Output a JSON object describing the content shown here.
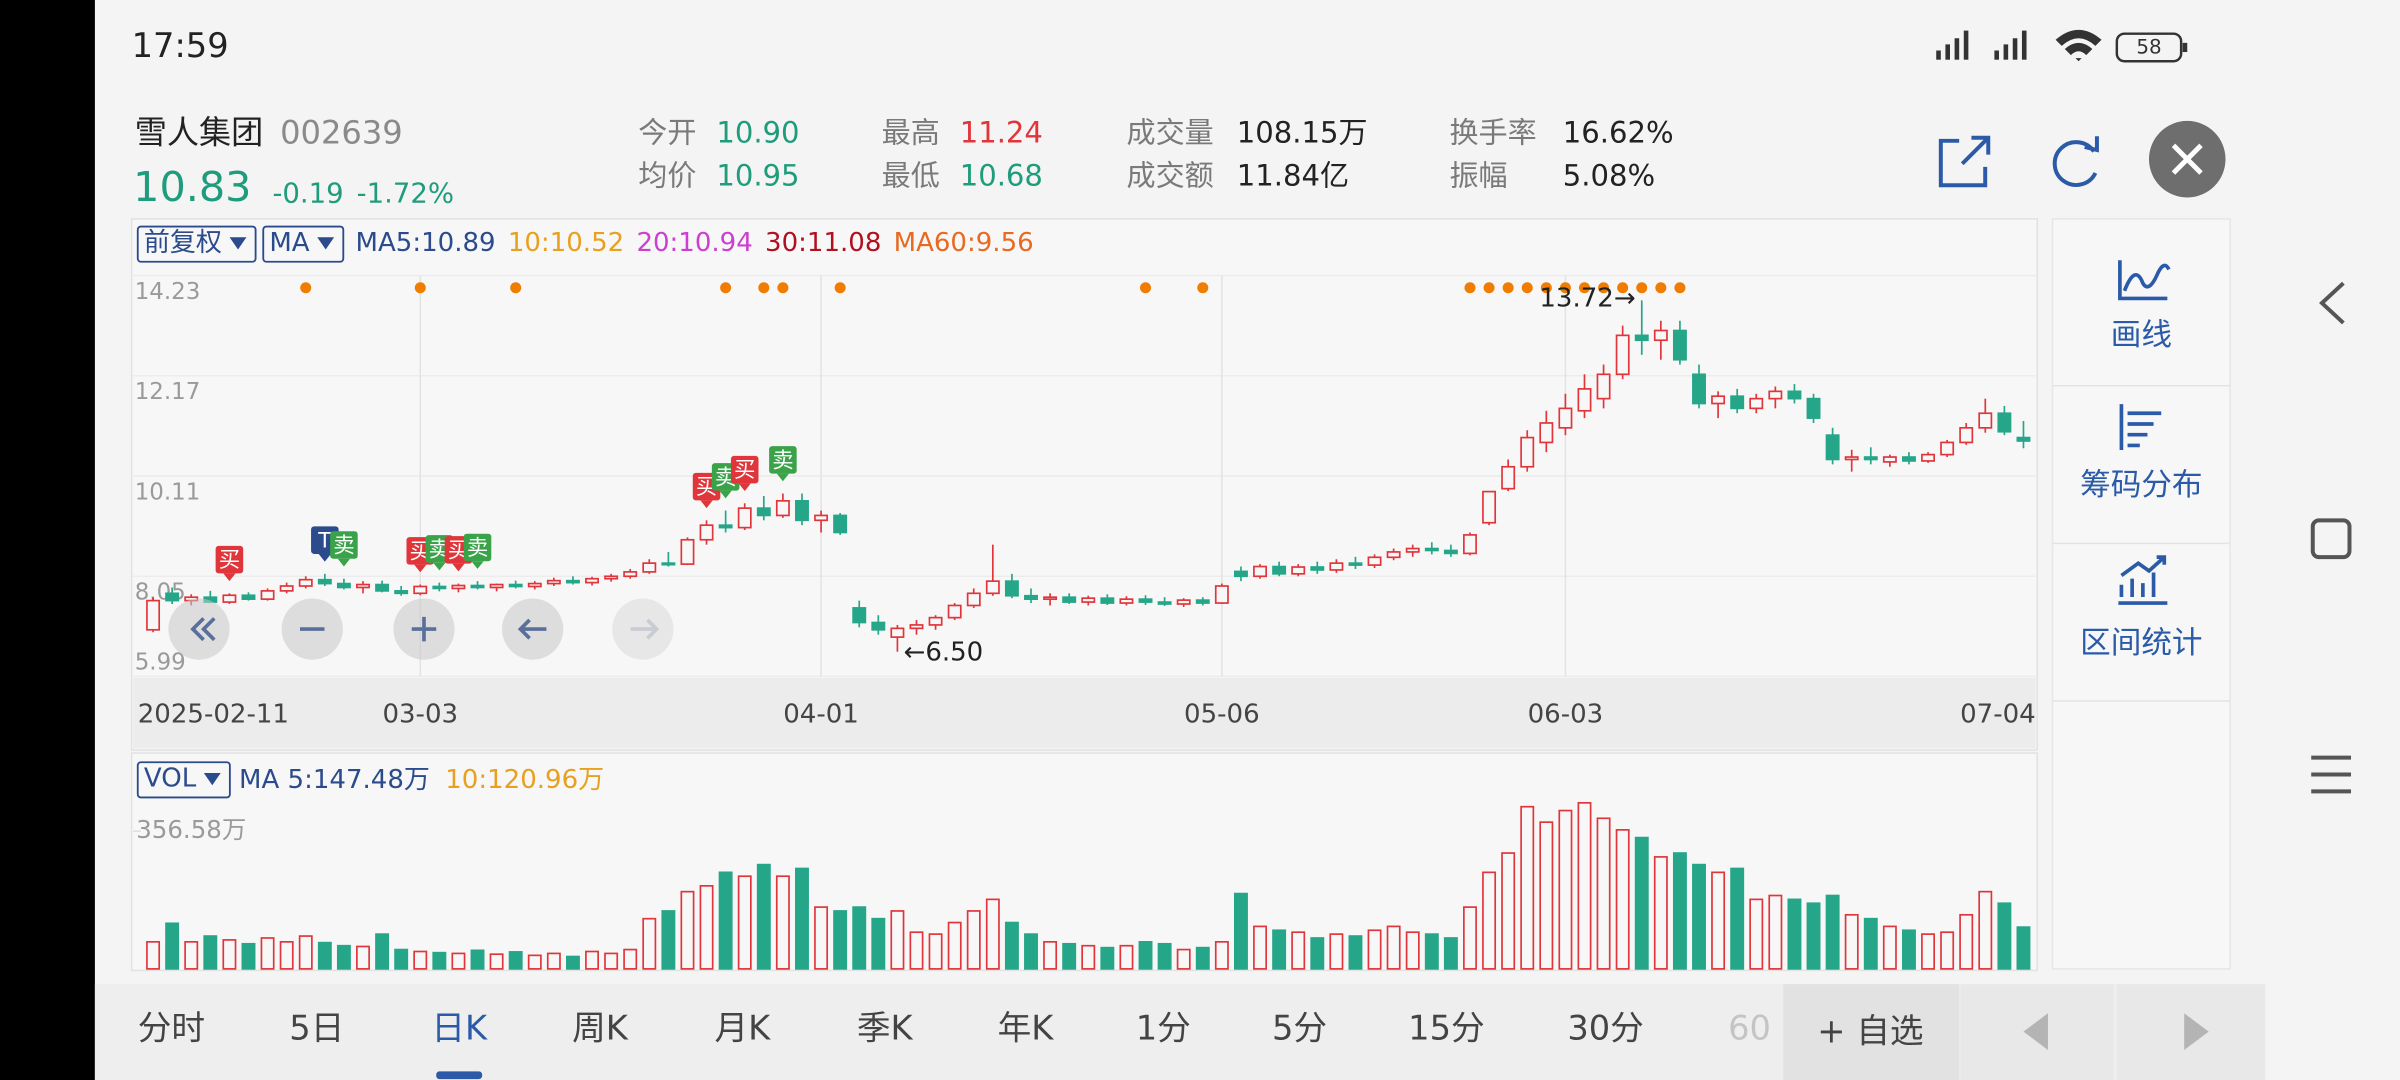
{
  "status_bar": {
    "time": "17:59",
    "battery": "58"
  },
  "header": {
    "name": "雪人集团",
    "code": "002639",
    "price": "10.83",
    "change": "-0.19",
    "change_pct": "-1.72%",
    "stats": [
      {
        "label": "今开",
        "value": "10.90",
        "color": "#1f9c7c"
      },
      {
        "label": "最高",
        "value": "11.24",
        "color": "#e0353a"
      },
      {
        "label": "成交量",
        "value": "108.15万",
        "color": "#222222"
      },
      {
        "label": "换手率",
        "value": "16.62%",
        "color": "#222222"
      },
      {
        "label": "均价",
        "value": "10.95",
        "color": "#1f9c7c"
      },
      {
        "label": "最低",
        "value": "10.68",
        "color": "#1f9c7c"
      },
      {
        "label": "成交额",
        "value": "11.84亿",
        "color": "#222222"
      },
      {
        "label": "振幅",
        "value": "5.08%",
        "color": "#222222"
      }
    ]
  },
  "chart_data": [
    {
      "type": "candlestick",
      "controls": [
        "前复权",
        "MA"
      ],
      "ma_legend": [
        {
          "label": "MA5:10.89",
          "color": "#2b4b8c"
        },
        {
          "label": "10:10.52",
          "color": "#e8a020"
        },
        {
          "label": "20:10.94",
          "color": "#cc3fd0"
        },
        {
          "label": "30:11.08",
          "color": "#b01020"
        },
        {
          "label": "MA60:9.56",
          "color": "#e86a20"
        }
      ],
      "categories": [
        "2025-02-11",
        null,
        null,
        null,
        null,
        null,
        null,
        null,
        null,
        null,
        null,
        null,
        null,
        null,
        "03-03",
        null,
        null,
        null,
        null,
        null,
        null,
        null,
        null,
        null,
        null,
        null,
        null,
        null,
        null,
        null,
        null,
        null,
        null,
        null,
        null,
        "04-01",
        null,
        null,
        null,
        null,
        null,
        null,
        null,
        null,
        null,
        null,
        null,
        null,
        null,
        null,
        null,
        null,
        null,
        null,
        null,
        null,
        "05-06",
        null,
        null,
        null,
        null,
        null,
        null,
        null,
        null,
        null,
        null,
        null,
        null,
        null,
        null,
        null,
        null,
        null,
        "06-03",
        null,
        null,
        null,
        null,
        null,
        null,
        null,
        null,
        null,
        null,
        null,
        null,
        null,
        null,
        null,
        null,
        null,
        null,
        null,
        null,
        null,
        null,
        null,
        "07-04"
      ],
      "open": [
        6.95,
        7.7,
        7.55,
        7.62,
        7.52,
        7.66,
        7.58,
        7.75,
        7.85,
        7.98,
        7.9,
        7.82,
        7.88,
        7.75,
        7.7,
        7.84,
        7.8,
        7.86,
        7.82,
        7.88,
        7.84,
        7.9,
        7.96,
        7.92,
        8.0,
        8.05,
        8.14,
        8.32,
        8.3,
        8.8,
        9.1,
        9.05,
        9.45,
        9.3,
        9.6,
        9.2,
        9.3,
        7.4,
        7.1,
        6.8,
        6.98,
        7.05,
        7.2,
        7.45,
        7.7,
        7.95,
        7.65,
        7.58,
        7.62,
        7.52,
        7.6,
        7.5,
        7.58,
        7.52,
        7.48,
        7.56,
        7.5,
        8.15,
        8.05,
        8.25,
        8.1,
        8.24,
        8.18,
        8.32,
        8.28,
        8.44,
        8.55,
        8.62,
        8.58,
        8.52,
        9.15,
        9.85,
        10.3,
        10.8,
        11.1,
        11.45,
        11.7,
        12.2,
        13.0,
        12.9,
        13.1,
        12.2,
        11.6,
        11.75,
        11.5,
        11.7,
        11.85,
        11.7,
        10.95,
        10.45,
        10.5,
        10.4,
        10.5,
        10.42,
        10.55,
        10.8,
        11.1,
        11.4,
        10.9
      ],
      "high": [
        7.62,
        7.82,
        7.68,
        7.75,
        7.7,
        7.72,
        7.8,
        7.92,
        8.05,
        8.1,
        8.0,
        7.95,
        7.96,
        7.85,
        7.88,
        7.92,
        7.9,
        7.95,
        7.9,
        7.96,
        7.95,
        8.02,
        8.05,
        8.04,
        8.1,
        8.2,
        8.4,
        8.55,
        8.85,
        9.2,
        9.4,
        9.55,
        9.7,
        9.75,
        9.75,
        9.4,
        9.35,
        7.55,
        7.25,
        7.05,
        7.15,
        7.25,
        7.5,
        7.8,
        8.7,
        8.1,
        7.8,
        7.7,
        7.7,
        7.65,
        7.68,
        7.64,
        7.66,
        7.62,
        7.6,
        7.62,
        7.9,
        8.25,
        8.3,
        8.35,
        8.3,
        8.35,
        8.4,
        8.45,
        8.5,
        8.62,
        8.7,
        8.75,
        8.7,
        8.95,
        9.8,
        10.45,
        11.05,
        11.45,
        11.8,
        12.2,
        12.4,
        13.2,
        13.72,
        13.3,
        13.3,
        12.4,
        11.85,
        11.9,
        11.8,
        11.95,
        12.0,
        11.8,
        11.1,
        10.65,
        10.7,
        10.55,
        10.6,
        10.6,
        10.85,
        11.2,
        11.7,
        11.55,
        11.24
      ],
      "low": [
        6.9,
        7.48,
        7.45,
        7.5,
        7.48,
        7.55,
        7.55,
        7.7,
        7.8,
        7.85,
        7.78,
        7.7,
        7.72,
        7.65,
        7.66,
        7.74,
        7.72,
        7.78,
        7.74,
        7.8,
        7.78,
        7.85,
        7.88,
        7.86,
        7.94,
        8.0,
        8.1,
        8.25,
        8.28,
        8.7,
        8.95,
        9.0,
        9.2,
        9.25,
        9.1,
        8.95,
        8.9,
        7.0,
        6.85,
        6.5,
        6.85,
        6.95,
        7.15,
        7.4,
        7.65,
        7.6,
        7.5,
        7.45,
        7.48,
        7.45,
        7.46,
        7.45,
        7.46,
        7.44,
        7.42,
        7.45,
        7.48,
        7.95,
        8.0,
        8.05,
        8.05,
        8.1,
        8.12,
        8.2,
        8.22,
        8.38,
        8.45,
        8.5,
        8.45,
        8.48,
        9.1,
        9.8,
        10.2,
        10.6,
        10.95,
        11.3,
        11.5,
        12.1,
        12.6,
        12.5,
        12.4,
        11.5,
        11.3,
        11.4,
        11.4,
        11.5,
        11.6,
        11.2,
        10.35,
        10.2,
        10.35,
        10.3,
        10.35,
        10.38,
        10.5,
        10.75,
        11.0,
        10.95,
        10.68
      ],
      "close": [
        7.55,
        7.55,
        7.62,
        7.52,
        7.66,
        7.58,
        7.75,
        7.85,
        7.98,
        7.9,
        7.82,
        7.88,
        7.75,
        7.7,
        7.84,
        7.8,
        7.86,
        7.82,
        7.88,
        7.84,
        7.9,
        7.96,
        7.92,
        8.0,
        8.05,
        8.14,
        8.32,
        8.3,
        8.8,
        9.1,
        9.05,
        9.45,
        9.3,
        9.6,
        9.2,
        9.3,
        8.95,
        7.1,
        6.95,
        6.98,
        7.05,
        7.2,
        7.45,
        7.7,
        7.95,
        7.65,
        7.58,
        7.62,
        7.52,
        7.6,
        7.5,
        7.58,
        7.52,
        7.48,
        7.56,
        7.5,
        7.85,
        8.05,
        8.25,
        8.1,
        8.24,
        8.18,
        8.32,
        8.28,
        8.44,
        8.55,
        8.62,
        8.58,
        8.52,
        8.9,
        9.79,
        10.3,
        10.9,
        11.2,
        11.5,
        11.9,
        12.2,
        13.0,
        12.9,
        13.1,
        12.5,
        11.6,
        11.75,
        11.5,
        11.7,
        11.85,
        11.7,
        11.3,
        10.45,
        10.5,
        10.45,
        10.5,
        10.42,
        10.55,
        10.8,
        11.1,
        11.4,
        11.02,
        10.83
      ],
      "up_color": "#e0353a",
      "down_color": "#26a689",
      "ylim": [
        5.99,
        14.23
      ],
      "yticks": [
        14.23,
        12.17,
        10.11,
        8.05,
        5.99
      ],
      "grid": true,
      "markers": [
        {
          "index": 4,
          "label": "买",
          "color": "#e0353a"
        },
        {
          "index": 9,
          "label": "T",
          "color": "#2b4b8c"
        },
        {
          "index": 10,
          "label": "卖",
          "color": "#3aa34a"
        },
        {
          "index": 14,
          "label": "买",
          "color": "#e0353a"
        },
        {
          "index": 15,
          "label": "卖",
          "color": "#3aa34a"
        },
        {
          "index": 16,
          "label": "买",
          "color": "#e0353a"
        },
        {
          "index": 17,
          "label": "卖",
          "color": "#3aa34a"
        },
        {
          "index": 29,
          "label": "买",
          "color": "#e0353a"
        },
        {
          "index": 30,
          "label": "卖",
          "color": "#3aa34a"
        },
        {
          "index": 31,
          "label": "买",
          "color": "#e0353a"
        },
        {
          "index": 33,
          "label": "卖",
          "color": "#3aa34a"
        }
      ],
      "signal_dots": [
        8,
        14,
        19,
        30,
        32,
        33,
        36,
        52,
        55,
        69,
        70,
        71,
        72,
        73,
        74,
        75,
        76,
        77,
        78,
        79,
        80
      ],
      "signal_color": "#f07c00",
      "annotations": [
        {
          "text": "13.72→",
          "index": 78,
          "at": "high"
        },
        {
          "text": "←6.50",
          "index": 39,
          "at": "low"
        }
      ]
    },
    {
      "type": "bar",
      "control": "VOL",
      "ma_legend": [
        {
          "label": "MA 5:147.48万",
          "color": "#2b4b8c"
        },
        {
          "label": "10:120.96万",
          "color": "#e8a020"
        }
      ],
      "values": [
        70,
        118,
        70,
        85,
        75,
        65,
        80,
        70,
        85,
        68,
        60,
        58,
        90,
        50,
        45,
        42,
        40,
        48,
        38,
        44,
        35,
        40,
        32,
        45,
        40,
        50,
        130,
        150,
        200,
        215,
        250,
        240,
        270,
        240,
        260,
        160,
        150,
        160,
        130,
        150,
        95,
        90,
        120,
        150,
        180,
        120,
        90,
        70,
        65,
        60,
        55,
        60,
        70,
        65,
        50,
        55,
        70,
        195,
        110,
        100,
        95,
        80,
        90,
        85,
        100,
        110,
        95,
        90,
        80,
        160,
        250,
        300,
        420,
        380,
        410,
        430,
        390,
        360,
        340,
        290,
        300,
        270,
        250,
        260,
        180,
        190,
        180,
        170,
        190,
        140,
        130,
        110,
        100,
        90,
        95,
        140,
        200,
        170,
        108.15
      ],
      "ylim": [
        0,
        440
      ],
      "yticks": [
        {
          "value": 356.58,
          "label": "356.58万"
        }
      ]
    }
  ],
  "side_panel": {
    "items": [
      "画线",
      "筹码分布",
      "区间统计"
    ]
  },
  "tabs": {
    "items": [
      "分时",
      "5日",
      "日K",
      "周K",
      "月K",
      "季K",
      "年K",
      "1分",
      "5分",
      "15分",
      "30分",
      "60"
    ],
    "selected": 2
  },
  "add_button": "+ 自选"
}
